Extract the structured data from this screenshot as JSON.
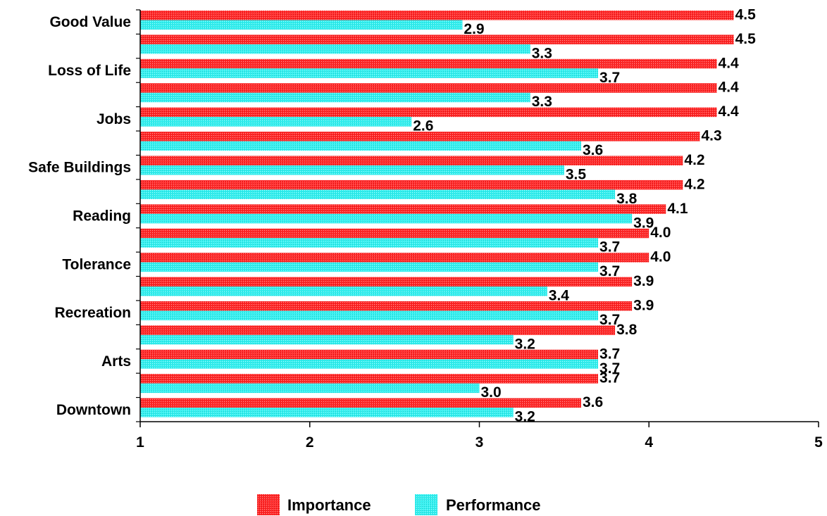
{
  "chart_data": {
    "type": "bar",
    "orientation": "horizontal",
    "categories": [
      "Good Value",
      "",
      "Loss of Life",
      "",
      "Jobs",
      "",
      "Safe Buildings",
      "",
      "Reading",
      "",
      "Tolerance",
      "",
      "Recreation",
      "",
      "Arts",
      "",
      "Downtown"
    ],
    "series": [
      {
        "name": "Importance",
        "color": "#ff3030",
        "values": [
          4.5,
          4.5,
          4.4,
          4.4,
          4.4,
          4.3,
          4.2,
          4.2,
          4.1,
          4.0,
          4.0,
          3.9,
          3.9,
          3.8,
          3.7,
          3.7,
          3.6
        ],
        "labels": [
          "4.5",
          "4.5",
          "4.4",
          "4.4",
          "4.4",
          "4.3",
          "4.2",
          "4.2",
          "4.1",
          "4.0",
          "4.0",
          "3.9",
          "3.9",
          "3.8",
          "3.7",
          "3.7",
          "3.6"
        ]
      },
      {
        "name": "Performance",
        "color": "#33eeee",
        "values": [
          2.9,
          3.3,
          3.7,
          3.3,
          2.6,
          3.6,
          3.5,
          3.8,
          3.9,
          3.7,
          3.7,
          3.4,
          3.7,
          3.2,
          3.7,
          3.0,
          3.2
        ],
        "labels": [
          "2.9",
          "3.3",
          "3.7",
          "3.3",
          "2.6",
          "3.6",
          "3.5",
          "3.8",
          "3.9",
          "3.7",
          "3.7",
          "3.4",
          "3.7",
          "3.2",
          "3.7",
          "3.0",
          "3.2"
        ]
      }
    ],
    "xlim": [
      1,
      5
    ],
    "xticks": [
      "1",
      "2",
      "3",
      "4",
      "5"
    ],
    "grid": false,
    "legend": "bottom-center"
  }
}
